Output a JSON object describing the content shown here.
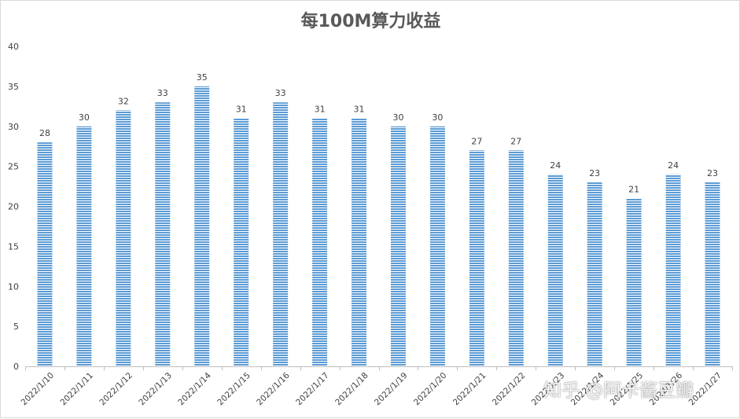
{
  "chart_data": {
    "type": "bar",
    "title": "每100M算力收益",
    "xlabel": "",
    "ylabel": "",
    "ylim": [
      0,
      40
    ],
    "yticks": [
      0,
      5,
      10,
      15,
      20,
      25,
      30,
      35,
      40
    ],
    "grid": false,
    "legend": "none",
    "bar_color": "#5b9bd5",
    "categories": [
      "2022/1/10",
      "2022/1/11",
      "2022/1/12",
      "2022/1/13",
      "2022/1/14",
      "2022/1/15",
      "2022/1/16",
      "2022/1/17",
      "2022/1/18",
      "2022/1/19",
      "2022/1/20",
      "2022/1/21",
      "2022/1/22",
      "2022/1/23",
      "2022/1/24",
      "2022/1/25",
      "2022/1/26",
      "2022/1/27"
    ],
    "values": [
      28,
      30,
      32,
      33,
      35,
      31,
      33,
      31,
      31,
      30,
      30,
      27,
      27,
      24,
      23,
      21,
      24,
      23
    ]
  },
  "watermark": "知乎 @阿卡酱豆瓣"
}
